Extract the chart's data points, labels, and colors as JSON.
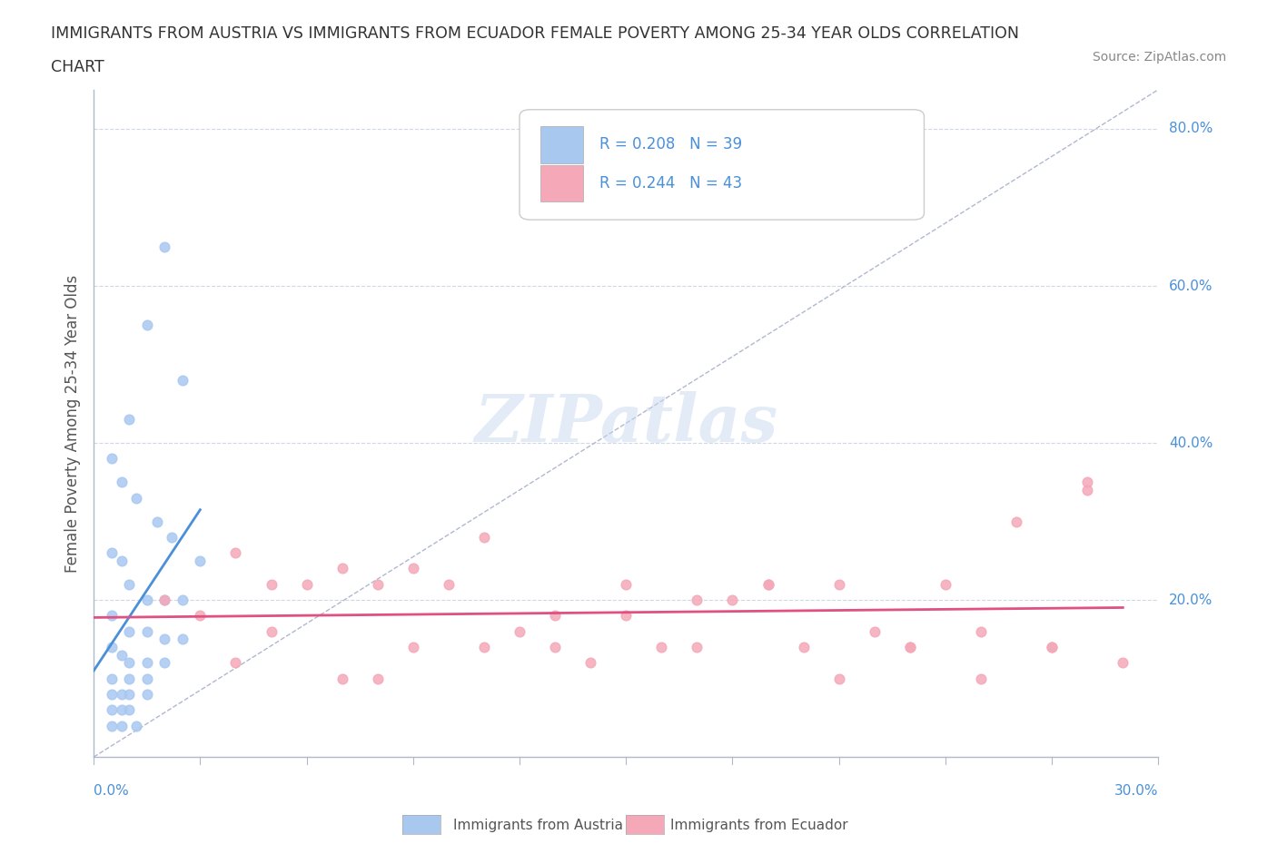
{
  "title_line1": "IMMIGRANTS FROM AUSTRIA VS IMMIGRANTS FROM ECUADOR FEMALE POVERTY AMONG 25-34 YEAR OLDS CORRELATION",
  "title_line2": "CHART",
  "source": "Source: ZipAtlas.com",
  "ylabel": "Female Poverty Among 25-34 Year Olds",
  "legend_austria_R": "R = 0.208",
  "legend_austria_N": "N = 39",
  "legend_ecuador_R": "R = 0.244",
  "legend_ecuador_N": "N = 43",
  "austria_color": "#a8c8f0",
  "austria_line_color": "#4a90d9",
  "ecuador_color": "#f4a8b8",
  "ecuador_line_color": "#e05080",
  "diagonal_color": "#b0b8d0",
  "grid_color": "#d0d8e8",
  "watermark_color": "#c8d8f0",
  "xmin": 0.0,
  "xmax": 0.3,
  "ymin": 0.0,
  "ymax": 0.85,
  "austria_scatter_x": [
    0.02,
    0.015,
    0.025,
    0.01,
    0.005,
    0.008,
    0.012,
    0.018,
    0.022,
    0.005,
    0.008,
    0.01,
    0.015,
    0.02,
    0.025,
    0.03,
    0.005,
    0.01,
    0.015,
    0.02,
    0.025,
    0.005,
    0.008,
    0.01,
    0.015,
    0.02,
    0.005,
    0.01,
    0.015,
    0.005,
    0.008,
    0.01,
    0.015,
    0.005,
    0.008,
    0.01,
    0.005,
    0.008,
    0.012
  ],
  "austria_scatter_y": [
    0.65,
    0.55,
    0.48,
    0.43,
    0.38,
    0.35,
    0.33,
    0.3,
    0.28,
    0.26,
    0.25,
    0.22,
    0.2,
    0.2,
    0.2,
    0.25,
    0.18,
    0.16,
    0.16,
    0.15,
    0.15,
    0.14,
    0.13,
    0.12,
    0.12,
    0.12,
    0.1,
    0.1,
    0.1,
    0.08,
    0.08,
    0.08,
    0.08,
    0.06,
    0.06,
    0.06,
    0.04,
    0.04,
    0.04
  ],
  "ecuador_scatter_x": [
    0.02,
    0.03,
    0.04,
    0.05,
    0.06,
    0.07,
    0.08,
    0.09,
    0.1,
    0.11,
    0.12,
    0.13,
    0.14,
    0.15,
    0.16,
    0.17,
    0.18,
    0.19,
    0.2,
    0.21,
    0.22,
    0.23,
    0.24,
    0.25,
    0.26,
    0.27,
    0.05,
    0.07,
    0.09,
    0.11,
    0.13,
    0.15,
    0.17,
    0.19,
    0.21,
    0.23,
    0.25,
    0.27,
    0.28,
    0.29,
    0.04,
    0.08,
    0.28
  ],
  "ecuador_scatter_y": [
    0.2,
    0.18,
    0.26,
    0.22,
    0.22,
    0.24,
    0.22,
    0.24,
    0.22,
    0.14,
    0.16,
    0.14,
    0.12,
    0.22,
    0.14,
    0.14,
    0.2,
    0.22,
    0.14,
    0.1,
    0.16,
    0.14,
    0.22,
    0.1,
    0.3,
    0.14,
    0.16,
    0.1,
    0.14,
    0.28,
    0.18,
    0.18,
    0.2,
    0.22,
    0.22,
    0.14,
    0.16,
    0.14,
    0.35,
    0.12,
    0.12,
    0.1,
    0.34
  ],
  "right_labels": [
    [
      0.8,
      "80.0%"
    ],
    [
      0.6,
      "60.0%"
    ],
    [
      0.4,
      "40.0%"
    ],
    [
      0.2,
      "20.0%"
    ]
  ]
}
